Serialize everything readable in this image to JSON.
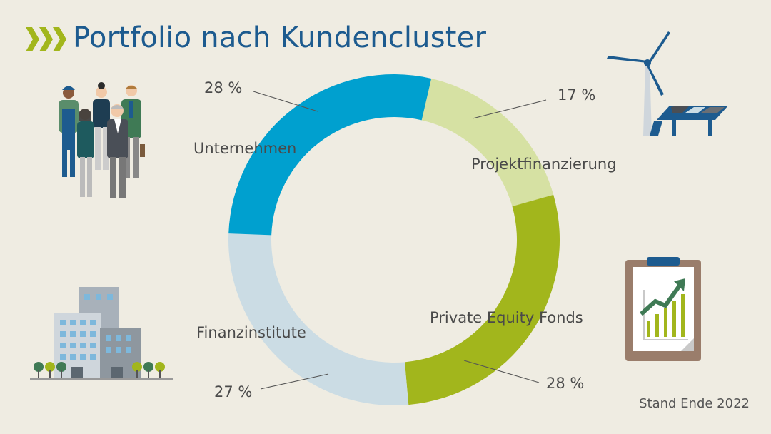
{
  "title": "Portfolio nach Kundencluster",
  "footnote": "Stand Ende 2022",
  "chart_data": {
    "type": "pie",
    "title": "Portfolio nach Kundencluster",
    "segments": [
      {
        "name": "Projektfinanzierung",
        "value": 17,
        "label": "17 %",
        "color": "#d6e1a3"
      },
      {
        "name": "Private Equity Fonds",
        "value": 28,
        "label": "28 %",
        "color": "#a2b61c"
      },
      {
        "name": "Finanzinstitute",
        "value": 27,
        "label": "27 %",
        "color": "#cbdce4"
      },
      {
        "name": "Unternehmen",
        "value": 28,
        "label": "28 %",
        "color": "#00a0cf"
      }
    ]
  },
  "icons": {
    "people": "people-illustration-icon",
    "wind_solar": "wind-turbine-solar-icon",
    "buildings": "office-buildings-icon",
    "clipboard": "clipboard-growth-chart-icon",
    "chevrons": "chevrons-right-icon"
  }
}
